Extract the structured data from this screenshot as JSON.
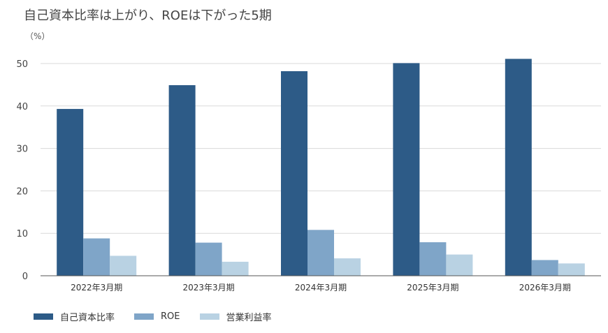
{
  "title": "自己資本比率は上がり、ROEは下がった5期",
  "unit_label": "（%）",
  "chart_data": {
    "type": "bar",
    "categories": [
      "2022年3月期",
      "2023年3月期",
      "2024年3月期",
      "2025年3月期",
      "2026年3月期"
    ],
    "series": [
      {
        "name": "自己資本比率",
        "color": "#2d5b87",
        "values": [
          39.3,
          44.9,
          48.2,
          50.1,
          51.1
        ]
      },
      {
        "name": "ROE",
        "color": "#7fa5c8",
        "values": [
          8.8,
          7.8,
          10.8,
          7.9,
          3.7
        ]
      },
      {
        "name": "営業利益率",
        "color": "#b9d2e3",
        "values": [
          4.7,
          3.3,
          4.1,
          5.0,
          2.9
        ]
      }
    ],
    "ylim": [
      0,
      50
    ],
    "yticks": [
      0,
      10,
      20,
      30,
      40,
      50
    ],
    "grid": true,
    "legend_position": "bottom-left"
  }
}
